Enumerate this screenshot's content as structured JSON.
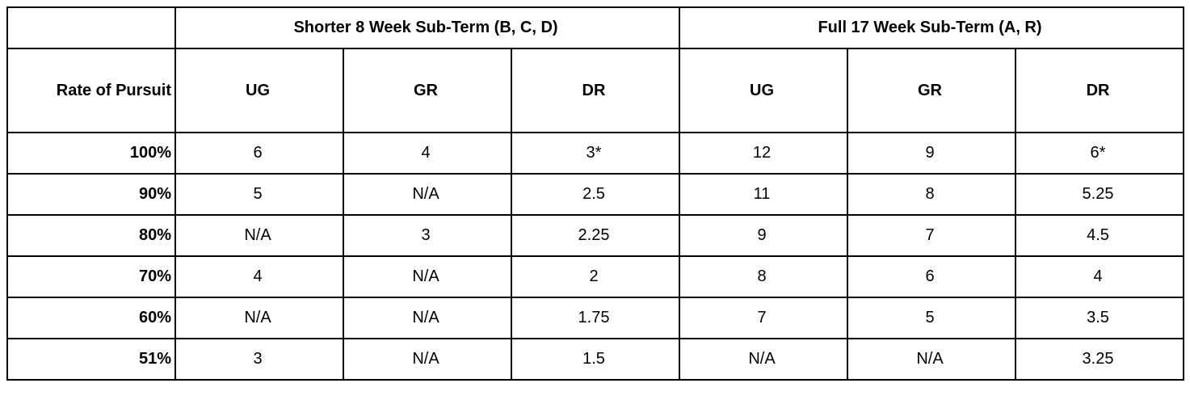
{
  "table": {
    "groups": [
      "Shorter 8 Week Sub-Term (B, C, D)",
      "Full 17 Week Sub-Term (A, R)"
    ],
    "row_header": "Rate of Pursuit",
    "columns": [
      "UG",
      "GR",
      "DR",
      "UG",
      "GR",
      "DR"
    ],
    "rows": [
      {
        "rate": "100%",
        "cells": [
          "6",
          "4",
          "3*",
          "12",
          "9",
          "6*"
        ]
      },
      {
        "rate": "90%",
        "cells": [
          "5",
          "N/A",
          "2.5",
          "11",
          "8",
          "5.25"
        ]
      },
      {
        "rate": "80%",
        "cells": [
          "N/A",
          "3",
          "2.25",
          "9",
          "7",
          "4.5"
        ]
      },
      {
        "rate": "70%",
        "cells": [
          "4",
          "N/A",
          "2",
          "8",
          "6",
          "4"
        ]
      },
      {
        "rate": "60%",
        "cells": [
          "N/A",
          "N/A",
          "1.75",
          "7",
          "5",
          "3.5"
        ]
      },
      {
        "rate": "51%",
        "cells": [
          "3",
          "N/A",
          "1.5",
          "N/A",
          "N/A",
          "3.25"
        ]
      }
    ]
  }
}
